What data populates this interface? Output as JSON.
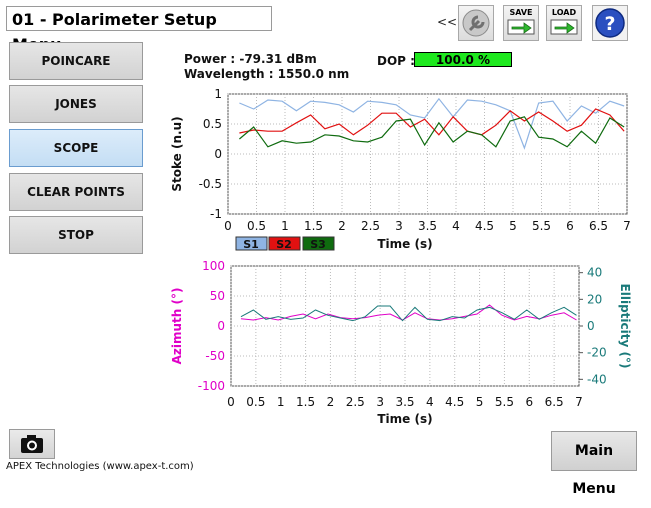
{
  "header": {
    "title": "01 - Polarimeter Setup Menu"
  },
  "toolbar": {
    "collapse_label": "<<",
    "save_label": "SAVE",
    "load_label": "LOAD",
    "help_label": "?"
  },
  "sidebar": {
    "buttons": [
      {
        "label": "POINCARE"
      },
      {
        "label": "JONES"
      },
      {
        "label": "SCOPE"
      },
      {
        "label": "CLEAR POINTS"
      },
      {
        "label": "STOP"
      }
    ]
  },
  "readout": {
    "power": "Power : -79.31 dBm",
    "wavelength": "Wavelength : 1550.0 nm",
    "dop_label": "DOP :",
    "dop_value": "100.0 %",
    "dop_fraction": 1.0
  },
  "footer": {
    "main_menu_label": "Main Menu",
    "copyright": "APEX Technologies (www.apex-t.com)"
  },
  "colors": {
    "s1": "#8fb4e3",
    "s2": "#e11111",
    "s3": "#0f6b0f",
    "azimuth": "#e000c8",
    "ellipticity": "#1a7a7a",
    "dop": "#1ee81e"
  },
  "chart_data": [
    {
      "type": "line",
      "ylabel": "Stoke (n.u)",
      "xlabel": "Time (s)",
      "xlim": [
        0,
        7
      ],
      "ylim": [
        -1,
        1
      ],
      "xticks": [
        "0",
        "0.5",
        "1",
        "1.5",
        "2",
        "2.5",
        "3",
        "3.5",
        "4",
        "4.5",
        "5",
        "5.5",
        "6",
        "6.5",
        "7"
      ],
      "yticks": [
        "1",
        "0.5",
        "0",
        "-0.5",
        "-1"
      ],
      "grid": true,
      "legend": [
        "S1",
        "S2",
        "S3"
      ],
      "x": [
        0.2,
        0.45,
        0.7,
        0.95,
        1.2,
        1.45,
        1.7,
        1.95,
        2.2,
        2.45,
        2.7,
        2.95,
        3.2,
        3.45,
        3.7,
        3.95,
        4.2,
        4.45,
        4.7,
        4.95,
        5.2,
        5.45,
        5.7,
        5.95,
        6.2,
        6.45,
        6.7,
        6.95
      ],
      "series": [
        {
          "name": "S1",
          "values": [
            0.85,
            0.75,
            0.9,
            0.88,
            0.72,
            0.88,
            0.86,
            0.82,
            0.7,
            0.88,
            0.86,
            0.82,
            0.65,
            0.6,
            0.92,
            0.62,
            0.9,
            0.88,
            0.82,
            0.72,
            0.1,
            0.85,
            0.88,
            0.55,
            0.8,
            0.68,
            0.88,
            0.8
          ]
        },
        {
          "name": "S2",
          "values": [
            0.35,
            0.4,
            0.38,
            0.38,
            0.52,
            0.65,
            0.42,
            0.5,
            0.32,
            0.48,
            0.68,
            0.68,
            0.45,
            0.58,
            0.32,
            0.62,
            0.38,
            0.32,
            0.48,
            0.72,
            0.55,
            0.7,
            0.55,
            0.38,
            0.48,
            0.75,
            0.65,
            0.38
          ]
        },
        {
          "name": "S3",
          "values": [
            0.25,
            0.45,
            0.12,
            0.22,
            0.18,
            0.2,
            0.32,
            0.3,
            0.22,
            0.2,
            0.28,
            0.55,
            0.58,
            0.15,
            0.52,
            0.2,
            0.38,
            0.32,
            0.12,
            0.55,
            0.62,
            0.28,
            0.25,
            0.12,
            0.38,
            0.18,
            0.6,
            0.45
          ]
        }
      ]
    },
    {
      "type": "line",
      "xlabel": "Time (s)",
      "ylabel": "Azimuth (°)",
      "ylabel_right": "Ellipticity (°)",
      "xlim": [
        0,
        7
      ],
      "ylim": [
        -100,
        100
      ],
      "ylim_right": [
        -45,
        45
      ],
      "xticks": [
        "0",
        "0.5",
        "1",
        "1.5",
        "2",
        "2.5",
        "3",
        "3.5",
        "4",
        "4.5",
        "5",
        "5.5",
        "6",
        "6.5",
        "7"
      ],
      "yticks": [
        "100",
        "50",
        "0",
        "-50",
        "-100"
      ],
      "yticks_right": [
        "40",
        "20",
        "0",
        "-20",
        "-40"
      ],
      "grid": true,
      "x": [
        0.2,
        0.45,
        0.7,
        0.95,
        1.2,
        1.45,
        1.7,
        1.95,
        2.2,
        2.45,
        2.7,
        2.95,
        3.2,
        3.45,
        3.7,
        3.95,
        4.2,
        4.45,
        4.7,
        4.95,
        5.2,
        5.45,
        5.7,
        5.95,
        6.2,
        6.45,
        6.7,
        6.95
      ],
      "series": [
        {
          "name": "Azimuth",
          "axis": "left",
          "values": [
            12,
            10,
            14,
            10,
            16,
            20,
            12,
            20,
            14,
            12,
            14,
            18,
            20,
            10,
            22,
            12,
            10,
            12,
            16,
            20,
            35,
            18,
            10,
            16,
            12,
            18,
            22,
            10
          ]
        },
        {
          "name": "Ellipticity",
          "axis": "right",
          "values": [
            7,
            12,
            5,
            7,
            5,
            6,
            12,
            8,
            6,
            4,
            7,
            15,
            15,
            4,
            14,
            5,
            4,
            7,
            6,
            12,
            14,
            10,
            5,
            12,
            5,
            10,
            14,
            8
          ]
        }
      ]
    }
  ]
}
